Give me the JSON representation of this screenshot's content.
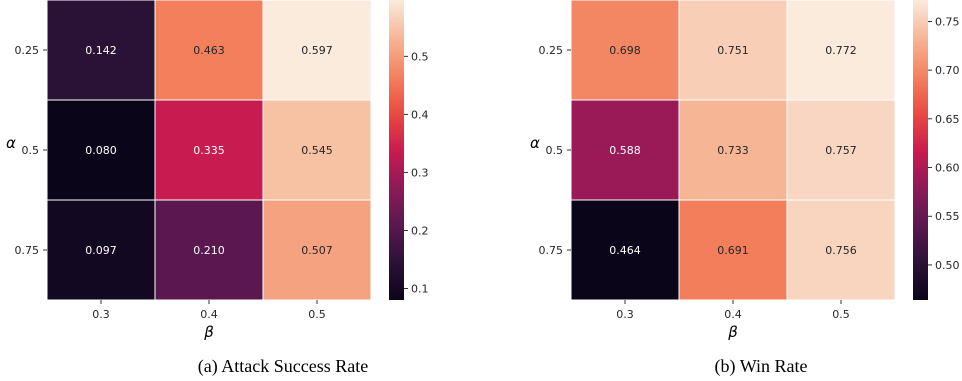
{
  "chart_data": [
    {
      "type": "heatmap",
      "caption": "(a) Attack Success Rate",
      "xlabel": "β",
      "ylabel": "α",
      "x_categories": [
        "0.3",
        "0.4",
        "0.5"
      ],
      "y_categories": [
        "0.25",
        "0.5",
        "0.75"
      ],
      "values": [
        [
          0.142,
          0.463,
          0.597
        ],
        [
          0.08,
          0.335,
          0.545
        ],
        [
          0.097,
          0.21,
          0.507
        ]
      ],
      "value_labels": [
        [
          "0.142",
          "0.463",
          "0.597"
        ],
        [
          "0.080",
          "0.335",
          "0.545"
        ],
        [
          "0.097",
          "0.210",
          "0.507"
        ]
      ],
      "colorbar": {
        "vmin": 0.08,
        "vmax": 0.597,
        "ticks": [
          0.1,
          0.2,
          0.3,
          0.4,
          0.5
        ],
        "tick_labels": [
          "0.1",
          "0.2",
          "0.3",
          "0.4",
          "0.5"
        ]
      },
      "colormap": "rocket",
      "grid": true
    },
    {
      "type": "heatmap",
      "caption": "(b) Win Rate",
      "xlabel": "β",
      "ylabel": "α",
      "x_categories": [
        "0.3",
        "0.4",
        "0.5"
      ],
      "y_categories": [
        "0.25",
        "0.5",
        "0.75"
      ],
      "values": [
        [
          0.698,
          0.751,
          0.772
        ],
        [
          0.588,
          0.733,
          0.757
        ],
        [
          0.464,
          0.691,
          0.756
        ]
      ],
      "value_labels": [
        [
          "0.698",
          "0.751",
          "0.772"
        ],
        [
          "0.588",
          "0.733",
          "0.757"
        ],
        [
          "0.464",
          "0.691",
          "0.756"
        ]
      ],
      "colorbar": {
        "vmin": 0.464,
        "vmax": 0.772,
        "ticks": [
          0.5,
          0.55,
          0.6,
          0.65,
          0.7,
          0.75
        ],
        "tick_labels": [
          "0.50",
          "0.55",
          "0.60",
          "0.65",
          "0.70",
          "0.75"
        ]
      },
      "colormap": "rocket",
      "grid": true
    }
  ]
}
